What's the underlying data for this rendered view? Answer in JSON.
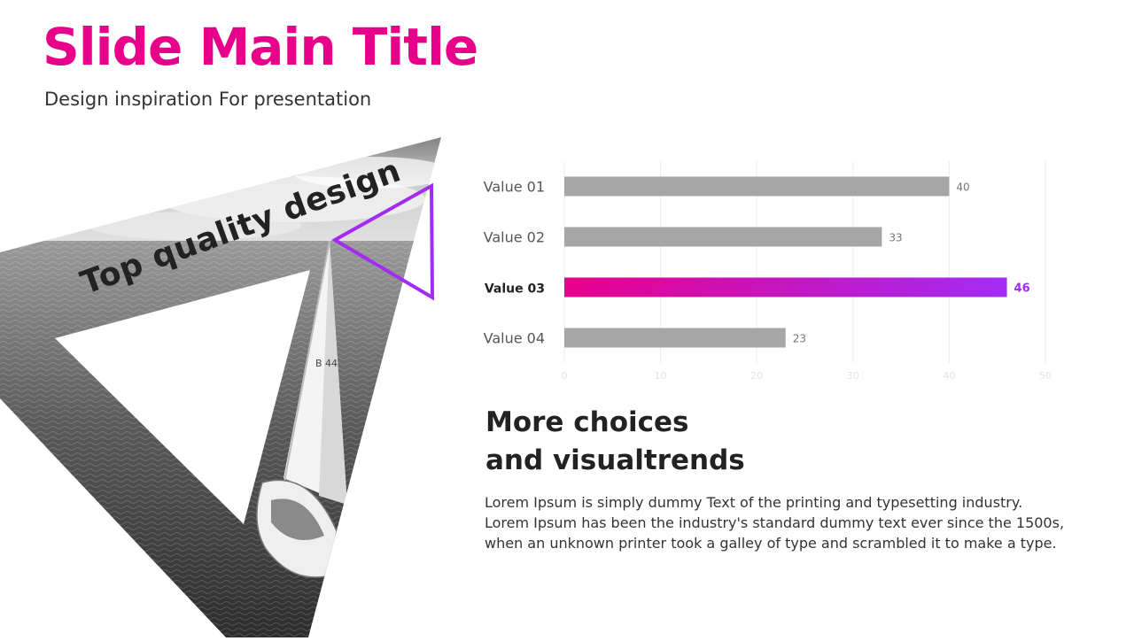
{
  "slide": {
    "title": "Slide Main Title",
    "subtitle": "Design inspiration For presentation",
    "tagline": "Top quality design",
    "heading_lines": [
      "More choices",
      "and visualtrends"
    ],
    "body_lines": [
      "Lorem Ipsum is simply dummy Text of the printing and typesetting industry.",
      "Lorem Ipsum has been the industry's standard dummy text ever since the 1500s,",
      "when an unknown printer took a galley of type and scrambled it to make a type."
    ]
  },
  "colors": {
    "brand": "#e8008a",
    "accent_purple": "#a22cf5",
    "bar_gray": "#a6a6a6",
    "grid": "#ececec"
  },
  "icons": {
    "photo": "sailboat-photo",
    "outline_triangle": "triangle-outline-icon"
  },
  "chart_data": {
    "type": "bar",
    "orientation": "horizontal",
    "categories": [
      "Value 01",
      "Value 02",
      "Value 03",
      "Value 04"
    ],
    "values": [
      40,
      33,
      46,
      23
    ],
    "highlight_index": 2,
    "xlim": [
      0,
      50
    ],
    "xticks": [
      0,
      10,
      20,
      30,
      40,
      50
    ],
    "grid": true
  }
}
